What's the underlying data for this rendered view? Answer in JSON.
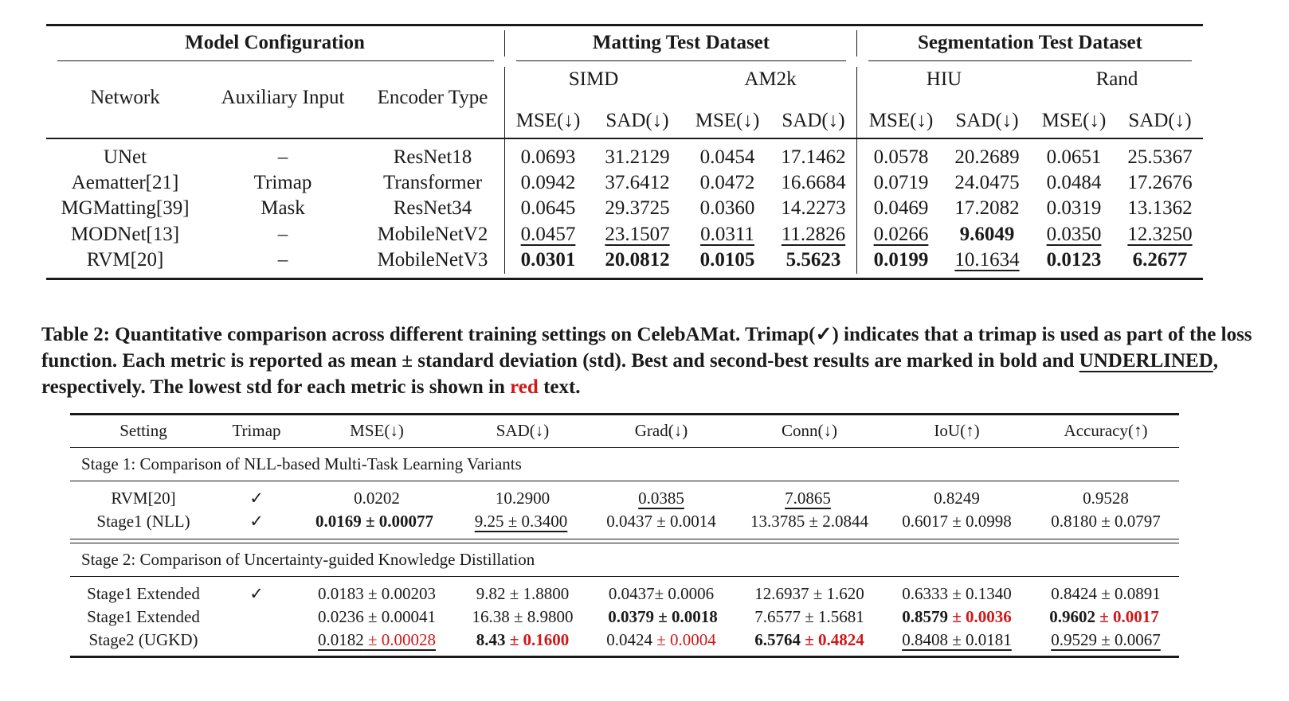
{
  "table1": {
    "group_headers": {
      "model_config": "Model Configuration",
      "matting": "Matting Test Dataset",
      "segmentation": "Segmentation Test Dataset"
    },
    "col_headers": {
      "network": "Network",
      "aux": "Auxiliary Input",
      "encoder": "Encoder Type",
      "simd": "SIMD",
      "am2k": "AM2k",
      "hiu": "HIU",
      "rand": "Rand",
      "mse": "MSE(↓)",
      "sad": "SAD(↓)"
    },
    "rows": [
      {
        "network": "UNet",
        "aux": "–",
        "encoder": "ResNet18",
        "v": [
          "0.0693",
          "31.2129",
          "0.0454",
          "17.1462",
          "0.0578",
          "20.2689",
          "0.0651",
          "25.5367"
        ]
      },
      {
        "network": "Aematter[21]",
        "aux": "Trimap",
        "encoder": "Transformer",
        "v": [
          "0.0942",
          "37.6412",
          "0.0472",
          "16.6684",
          "0.0719",
          "24.0475",
          "0.0484",
          "17.2676"
        ]
      },
      {
        "network": "MGMatting[39]",
        "aux": "Mask",
        "encoder": "ResNet34",
        "v": [
          "0.0645",
          "29.3725",
          "0.0360",
          "14.2273",
          "0.0469",
          "17.2082",
          "0.0319",
          "13.1362"
        ]
      },
      {
        "network": "MODNet[13]",
        "aux": "–",
        "encoder": "MobileNetV2",
        "v": [
          "0.0457",
          "23.1507",
          "0.0311",
          "11.2826",
          "0.0266",
          "9.6049",
          "0.0350",
          "12.3250"
        ]
      },
      {
        "network": "RVM[20]",
        "aux": "–",
        "encoder": "MobileNetV3",
        "v": [
          "0.0301",
          "20.0812",
          "0.0105",
          "5.5623",
          "0.0199",
          "10.1634",
          "0.0123",
          "6.2677"
        ]
      }
    ]
  },
  "caption": {
    "part1": "Table 2: Quantitative comparison across different training settings on CelebAMat. Trimap(✓) indicates that a trimap is used as part of the loss function. Each metric is reported as mean ± standard deviation (std). Best and second-best results are marked in bold and ",
    "underlined": "UNDERLINED",
    "part2": ", respectively. The lowest std for each metric is shown in ",
    "red_word": "red",
    "part3": " text."
  },
  "table2": {
    "headers": [
      "Setting",
      "Trimap",
      "MSE(↓)",
      "SAD(↓)",
      "Grad(↓)",
      "Conn(↓)",
      "IoU(↑)",
      "Accuracy(↑)"
    ],
    "stage1_title": "Stage 1: Comparison of NLL-based Multi-Task Learning Variants",
    "stage2_title": "Stage 2: Comparison of Uncertainty-guided Knowledge Distillation",
    "rows": {
      "rvm": {
        "setting": "RVM[20]",
        "trimap": "✓",
        "mse": "0.0202",
        "sad": "10.2900",
        "grad": "0.0385",
        "conn": "7.0865",
        "iou": "0.8249",
        "acc": "0.9528"
      },
      "nll": {
        "setting": "Stage1 (NLL)",
        "trimap": "✓",
        "mse": "0.0169 ± 0.00077",
        "sad": "9.25 ± 0.3400",
        "grad": "0.0437 ± 0.0014",
        "conn": "13.3785 ± 2.0844",
        "iou": "0.6017 ± 0.0998",
        "acc": "0.8180 ± 0.0797"
      },
      "ext1": {
        "setting": "Stage1 Extended",
        "trimap": "✓",
        "mse": "0.0183 ± 0.00203",
        "sad": "9.82 ± 1.8800",
        "grad": "0.0437± 0.0006",
        "conn": "12.6937 ± 1.620",
        "iou": "0.6333 ± 0.1340",
        "acc": "0.8424 ± 0.0891"
      },
      "ext2": {
        "setting": "Stage1 Extended",
        "mse": "0.0236 ± 0.00041",
        "sad": "16.38 ± 8.9800",
        "grad": "0.0379 ± 0.0018",
        "conn": "7.6577 ± 1.5681",
        "iou_mean": "0.8579",
        "iou_std": "± 0.0036",
        "acc_mean": "0.9602",
        "acc_std": "± 0.0017"
      },
      "ugkd": {
        "setting": "Stage2 (UGKD)",
        "mse_mean": "0.0182",
        "mse_std": "± 0.00028",
        "sad_mean": "8.43",
        "sad_std": "± 0.1600",
        "grad_mean": "0.0424",
        "grad_std": "± 0.0004",
        "conn_mean": "6.5764",
        "conn_std": "± 0.4824",
        "iou": "0.8408 ± 0.0181",
        "acc": "0.9529 ± 0.0067"
      }
    }
  },
  "colors": {
    "red": "#d01818",
    "text": "#1a1a1a"
  }
}
